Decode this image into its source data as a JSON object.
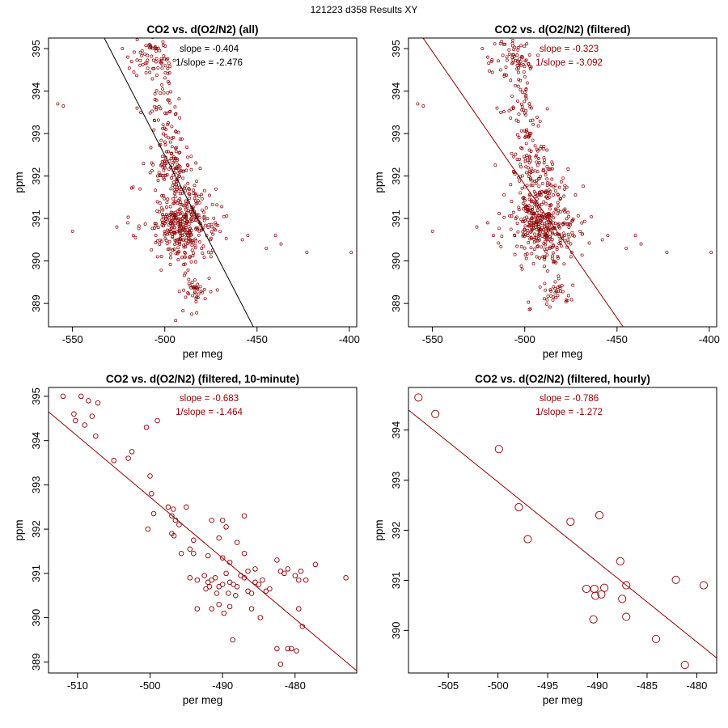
{
  "super_title": "121223   d358   Results XY",
  "colors": {
    "series": "#8b0000",
    "fit_all": "#000000",
    "fit": "#8b0000"
  },
  "chart_data": [
    {
      "id": "all",
      "type": "scatter",
      "title": "CO2 vs. d(O2/N2) (all)",
      "xlabel": "per meg",
      "ylabel": "ppm",
      "xlim": [
        -563,
        -396
      ],
      "ylim": [
        388.45,
        395.25
      ],
      "xticks": [
        "-550",
        "-500",
        "-450",
        "-400"
      ],
      "yticks": [
        "389",
        "390",
        "391",
        "392",
        "393",
        "394",
        "395"
      ],
      "slope_label": "slope = -0.404",
      "inv_slope_label": "1/slope = -2.476",
      "fit_color": "#000000",
      "fit_line": {
        "x1": -533.4,
        "y1": 395.3,
        "x2": -452.0,
        "y2": 388.45
      },
      "point_size": 1.6,
      "clusters": [
        {
          "cx": -508,
          "cy": 394.8,
          "sx": 6,
          "sy": 0.22,
          "n": 55
        },
        {
          "cx": -500,
          "cy": 394.5,
          "sx": 3,
          "sy": 0.35,
          "n": 20
        },
        {
          "cx": -502,
          "cy": 393.7,
          "sx": 4,
          "sy": 0.3,
          "n": 25
        },
        {
          "cx": -498,
          "cy": 393.0,
          "sx": 4,
          "sy": 0.3,
          "n": 25
        },
        {
          "cx": -497,
          "cy": 392.3,
          "sx": 6,
          "sy": 0.3,
          "n": 60
        },
        {
          "cx": -492,
          "cy": 391.7,
          "sx": 7,
          "sy": 0.35,
          "n": 90
        },
        {
          "cx": -490,
          "cy": 390.85,
          "sx": 9,
          "sy": 0.3,
          "n": 250
        },
        {
          "cx": -488,
          "cy": 390.3,
          "sx": 8,
          "sy": 0.3,
          "n": 60
        },
        {
          "cx": -483,
          "cy": 389.35,
          "sx": 4,
          "sy": 0.15,
          "n": 30
        },
        {
          "cx": -488,
          "cy": 389.0,
          "sx": 6,
          "sy": 0.3,
          "n": 10
        }
      ],
      "points": [
        [
          -558,
          393.7
        ],
        [
          -555,
          393.65
        ],
        [
          -550,
          390.7
        ],
        [
          -526,
          390.8
        ],
        [
          -520,
          390.9
        ],
        [
          -517,
          390.6
        ],
        [
          -470,
          390.7
        ],
        [
          -458,
          390.5
        ],
        [
          -455,
          390.6
        ],
        [
          -445,
          390.3
        ],
        [
          -440,
          390.6
        ],
        [
          -437,
          390.4
        ],
        [
          -423,
          390.2
        ],
        [
          -399,
          390.2
        ],
        [
          -475,
          390.1
        ],
        [
          -518,
          394.7
        ],
        [
          -523,
          395.0
        ],
        [
          -520,
          394.8
        ],
        [
          -515,
          393.6
        ],
        [
          -513,
          393.5
        ]
      ]
    },
    {
      "id": "filtered",
      "type": "scatter",
      "title": "CO2 vs. d(O2/N2) (filtered)",
      "xlabel": "per meg",
      "ylabel": "ppm",
      "xlim": [
        -563,
        -396
      ],
      "ylim": [
        388.45,
        395.25
      ],
      "xticks": [
        "-550",
        "-500",
        "-450",
        "-400"
      ],
      "yticks": [
        "389",
        "390",
        "391",
        "392",
        "393",
        "394",
        "395"
      ],
      "slope_label": "slope = -0.323",
      "inv_slope_label": "1/slope = -3.092",
      "fit_color": "#8b0000",
      "fit_line": {
        "x1": -555.9,
        "y1": 395.3,
        "x2": -446.7,
        "y2": 388.45
      },
      "point_size": 1.6,
      "clusters": [
        {
          "cx": -508,
          "cy": 394.8,
          "sx": 6,
          "sy": 0.22,
          "n": 55
        },
        {
          "cx": -500,
          "cy": 394.5,
          "sx": 3,
          "sy": 0.35,
          "n": 20
        },
        {
          "cx": -502,
          "cy": 393.7,
          "sx": 4,
          "sy": 0.3,
          "n": 25
        },
        {
          "cx": -498,
          "cy": 393.0,
          "sx": 4,
          "sy": 0.3,
          "n": 25
        },
        {
          "cx": -497,
          "cy": 392.3,
          "sx": 6,
          "sy": 0.3,
          "n": 60
        },
        {
          "cx": -492,
          "cy": 391.7,
          "sx": 7,
          "sy": 0.35,
          "n": 90
        },
        {
          "cx": -490,
          "cy": 390.85,
          "sx": 9,
          "sy": 0.3,
          "n": 250
        },
        {
          "cx": -488,
          "cy": 390.3,
          "sx": 8,
          "sy": 0.3,
          "n": 60
        },
        {
          "cx": -483,
          "cy": 389.35,
          "sx": 4,
          "sy": 0.15,
          "n": 30
        },
        {
          "cx": -488,
          "cy": 389.0,
          "sx": 6,
          "sy": 0.3,
          "n": 10
        }
      ],
      "points": [
        [
          -558,
          393.7
        ],
        [
          -555,
          393.65
        ],
        [
          -550,
          390.7
        ],
        [
          -526,
          390.8
        ],
        [
          -520,
          390.9
        ],
        [
          -517,
          390.6
        ],
        [
          -470,
          390.7
        ],
        [
          -458,
          390.5
        ],
        [
          -455,
          390.6
        ],
        [
          -445,
          390.3
        ],
        [
          -440,
          390.6
        ],
        [
          -437,
          390.4
        ],
        [
          -423,
          390.2
        ],
        [
          -399,
          390.2
        ],
        [
          -475,
          390.1
        ],
        [
          -518,
          394.7
        ],
        [
          -523,
          395.0
        ],
        [
          -520,
          394.8
        ],
        [
          -515,
          393.6
        ],
        [
          -513,
          393.5
        ]
      ]
    },
    {
      "id": "tenmin",
      "type": "scatter",
      "title": "CO2 vs. d(O2/N2) (filtered, 10-minute)",
      "xlabel": "per meg",
      "ylabel": "ppm",
      "xlim": [
        -514,
        -471.5
      ],
      "ylim": [
        388.75,
        395.2
      ],
      "xticks": [
        "-510",
        "-500",
        "-490",
        "-480"
      ],
      "yticks": [
        "389",
        "390",
        "391",
        "392",
        "393",
        "394",
        "395"
      ],
      "slope_label": "slope = -0.683",
      "inv_slope_label": "1/slope = -1.464",
      "fit_color": "#8b0000",
      "fit_line": {
        "x1": -514,
        "y1": 394.65,
        "x2": -471.5,
        "y2": 388.8
      },
      "point_size": 2.8,
      "points": [
        [
          -512,
          395.0
        ],
        [
          -509.5,
          395.0
        ],
        [
          -508.5,
          394.9
        ],
        [
          -507.2,
          394.85
        ],
        [
          -510.5,
          394.6
        ],
        [
          -508,
          394.55
        ],
        [
          -510.3,
          394.45
        ],
        [
          -509,
          394.35
        ],
        [
          -507.5,
          394.1
        ],
        [
          -499,
          394.45
        ],
        [
          -500.5,
          394.3
        ],
        [
          -502.5,
          393.75
        ],
        [
          -503,
          393.6
        ],
        [
          -505,
          393.55
        ],
        [
          -500,
          393.2
        ],
        [
          -499.8,
          392.8
        ],
        [
          -497.5,
          392.5
        ],
        [
          -496.8,
          392.45
        ],
        [
          -495,
          392.5
        ],
        [
          -497,
          392.3
        ],
        [
          -499.5,
          392.35
        ],
        [
          -500.3,
          392.0
        ],
        [
          -496.5,
          392.2
        ],
        [
          -496,
          392.1
        ],
        [
          -497,
          391.9
        ],
        [
          -496.7,
          391.85
        ],
        [
          -494,
          391.75
        ],
        [
          -491.5,
          392.2
        ],
        [
          -490,
          392.2
        ],
        [
          -489.5,
          392.05
        ],
        [
          -487,
          392.3
        ],
        [
          -490.5,
          391.8
        ],
        [
          -494.5,
          391.55
        ],
        [
          -494,
          391.45
        ],
        [
          -495.7,
          391.45
        ],
        [
          -488,
          391.7
        ],
        [
          -487,
          391.45
        ],
        [
          -492,
          391.4
        ],
        [
          -490,
          391.35
        ],
        [
          -489,
          391.25
        ],
        [
          -485.5,
          391.1
        ],
        [
          -486.5,
          391.05
        ],
        [
          -482.5,
          391.3
        ],
        [
          -482,
          391.05
        ],
        [
          -481.5,
          391.0
        ],
        [
          -481,
          391.1
        ],
        [
          -480,
          390.95
        ],
        [
          -479.5,
          390.85
        ],
        [
          -478.5,
          390.85
        ],
        [
          -479.2,
          391.05
        ],
        [
          -477.2,
          391.2
        ],
        [
          -473,
          390.9
        ],
        [
          -494.5,
          390.9
        ],
        [
          -493.5,
          390.85
        ],
        [
          -492.5,
          390.95
        ],
        [
          -492,
          390.8
        ],
        [
          -491.5,
          390.85
        ],
        [
          -491,
          390.9
        ],
        [
          -490.5,
          390.7
        ],
        [
          -490,
          390.75
        ],
        [
          -489.5,
          391.0
        ],
        [
          -489,
          390.8
        ],
        [
          -488.5,
          390.75
        ],
        [
          -488,
          390.7
        ],
        [
          -487.5,
          390.95
        ],
        [
          -487,
          390.9
        ],
        [
          -486.5,
          390.6
        ],
        [
          -486,
          390.55
        ],
        [
          -485.5,
          390.8
        ],
        [
          -485,
          390.75
        ],
        [
          -484.5,
          390.85
        ],
        [
          -484,
          390.6
        ],
        [
          -483.5,
          390.65
        ],
        [
          -492.3,
          390.65
        ],
        [
          -491.8,
          390.7
        ],
        [
          -490.8,
          390.55
        ],
        [
          -489.2,
          390.55
        ],
        [
          -488.2,
          390.5
        ],
        [
          -490.5,
          390.3
        ],
        [
          -489,
          390.25
        ],
        [
          -491.5,
          390.2
        ],
        [
          -493.5,
          390.2
        ],
        [
          -486,
          390.2
        ],
        [
          -484.8,
          390.0
        ],
        [
          -489.8,
          390.1
        ],
        [
          -488.6,
          389.5
        ],
        [
          -482.5,
          389.3
        ],
        [
          -481,
          389.3
        ],
        [
          -480.5,
          389.3
        ],
        [
          -479.8,
          389.25
        ],
        [
          -479,
          389.8
        ],
        [
          -479.5,
          390.2
        ],
        [
          -482,
          388.95
        ]
      ]
    },
    {
      "id": "hourly",
      "type": "scatter",
      "title": "CO2 vs. d(O2/N2) (filtered, hourly)",
      "xlabel": "per meg",
      "ylabel": "ppm",
      "xlim": [
        -509,
        -478
      ],
      "ylim": [
        389.15,
        394.85
      ],
      "xticks": [
        "-505",
        "-500",
        "-495",
        "-490",
        "-485",
        "-480"
      ],
      "yticks": [
        "390",
        "391",
        "392",
        "393",
        "394"
      ],
      "slope_label": "slope = -0.786",
      "inv_slope_label": "1/slope = -1.272",
      "fit_color": "#8b0000",
      "fit_line": {
        "x1": -509,
        "y1": 394.4,
        "x2": -478,
        "y2": 389.45
      },
      "point_size": 4.6,
      "points": [
        [
          -508,
          394.65
        ],
        [
          -506.3,
          394.32
        ],
        [
          -499.9,
          393.62
        ],
        [
          -497.9,
          392.46
        ],
        [
          -497,
          391.82
        ],
        [
          -492.7,
          392.17
        ],
        [
          -489.8,
          392.3
        ],
        [
          -491.1,
          390.83
        ],
        [
          -490.3,
          390.83
        ],
        [
          -490.2,
          390.69
        ],
        [
          -489.6,
          390.72
        ],
        [
          -489.3,
          390.85
        ],
        [
          -490.4,
          390.22
        ],
        [
          -487.7,
          391.38
        ],
        [
          -487.1,
          390.9
        ],
        [
          -487.5,
          390.63
        ],
        [
          -487.1,
          390.27
        ],
        [
          -484.1,
          389.83
        ],
        [
          -482.1,
          391.01
        ],
        [
          -479.3,
          390.9
        ],
        [
          -481.2,
          389.31
        ]
      ]
    }
  ]
}
